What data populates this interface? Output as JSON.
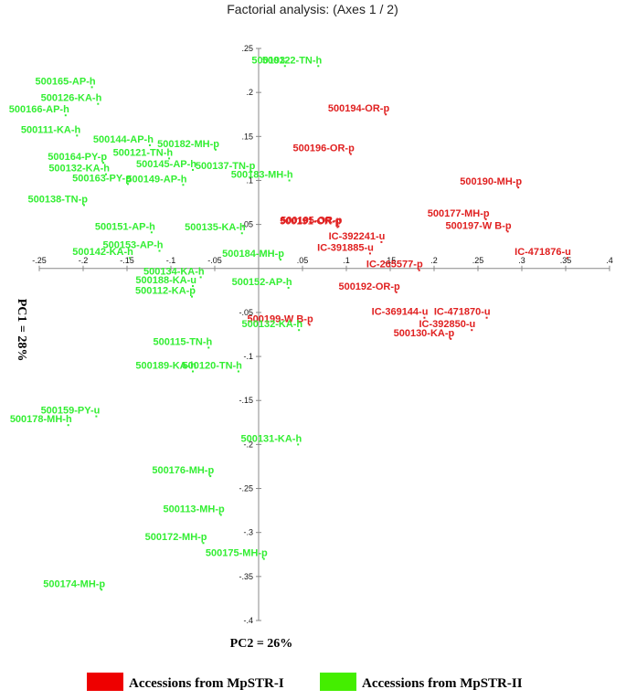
{
  "chart_data": {
    "type": "scatter",
    "title": "Factorial analysis: (Axes 1 / 2)",
    "xlabel": "PC2 = 26%",
    "ylabel": "PC1 = 28%",
    "xlim": [
      -0.25,
      0.4
    ],
    "ylim": [
      -0.4,
      0.25
    ],
    "x_ticks": [
      {
        "value": -0.25,
        "label": "-.25"
      },
      {
        "value": -0.2,
        "label": "-.2"
      },
      {
        "value": -0.15,
        "label": "-.15"
      },
      {
        "value": -0.1,
        "label": "-.1"
      },
      {
        "value": -0.05,
        "label": "-.05"
      },
      {
        "value": 0.05,
        "label": ".05"
      },
      {
        "value": 0.1,
        "label": ".1"
      },
      {
        "value": 0.15,
        "label": ".15"
      },
      {
        "value": 0.2,
        "label": ".2"
      },
      {
        "value": 0.25,
        "label": ".25"
      },
      {
        "value": 0.3,
        "label": ".3"
      },
      {
        "value": 0.35,
        "label": ".35"
      },
      {
        "value": 0.4,
        "label": ".4"
      }
    ],
    "y_ticks": [
      {
        "value": 0.25,
        "label": ".25"
      },
      {
        "value": 0.2,
        "label": ".2"
      },
      {
        "value": 0.15,
        "label": ".15"
      },
      {
        "value": 0.1,
        "label": ".1"
      },
      {
        "value": 0.05,
        "label": ".05"
      },
      {
        "value": -0.05,
        "label": "-.05"
      },
      {
        "value": -0.1,
        "label": "-.1"
      },
      {
        "value": -0.15,
        "label": "-.15"
      },
      {
        "value": -0.2,
        "label": "-.2"
      },
      {
        "value": -0.25,
        "label": "-.25"
      },
      {
        "value": -0.3,
        "label": "-.3"
      },
      {
        "value": -0.35,
        "label": "-.35"
      },
      {
        "value": -0.4,
        "label": "-.4"
      }
    ],
    "grid": false,
    "legend_position": "bottom",
    "series": [
      {
        "name": "Accessions from MpSTR-I",
        "color": "#e02020",
        "points": [
          {
            "label": "500194-OR-p",
            "x": 0.145,
            "y": 0.175
          },
          {
            "label": "500196-OR-p",
            "x": 0.105,
            "y": 0.13
          },
          {
            "label": "500190-MH-p",
            "x": 0.296,
            "y": 0.092
          },
          {
            "label": "500177-MH-p",
            "x": 0.259,
            "y": 0.056
          },
          {
            "label": "500197-W B-p",
            "x": 0.284,
            "y": 0.042
          },
          {
            "label": "500195-OR-p",
            "x": 0.091,
            "y": 0.048
          },
          {
            "label": "500191-OR-p",
            "x": 0.09,
            "y": 0.047
          },
          {
            "label": "IC-392241-u",
            "x": 0.14,
            "y": 0.03
          },
          {
            "label": "IC-391885-u",
            "x": 0.127,
            "y": 0.017
          },
          {
            "label": "IC-471876-u",
            "x": 0.352,
            "y": 0.012
          },
          {
            "label": "IC-265577-p",
            "x": 0.183,
            "y": -0.002
          },
          {
            "label": "500192-OR-p",
            "x": 0.157,
            "y": -0.027
          },
          {
            "label": "IC-369144-u",
            "x": 0.189,
            "y": -0.056
          },
          {
            "label": "IC-471870-u",
            "x": 0.26,
            "y": -0.056
          },
          {
            "label": "IC-392850-u",
            "x": 0.243,
            "y": -0.07
          },
          {
            "label": "500130-KA-p",
            "x": 0.219,
            "y": -0.08
          },
          {
            "label": "500199-W B-p",
            "x": 0.058,
            "y": -0.064
          }
        ]
      },
      {
        "name": "Accessions from MpSTR-II",
        "color": "#33ee33",
        "points": [
          {
            "label": "500193-",
            "x": 0.03,
            "y": 0.23
          },
          {
            "label": "500122-TN-h",
            "x": 0.068,
            "y": 0.23
          },
          {
            "label": "500165-AP-h",
            "x": -0.19,
            "y": 0.206
          },
          {
            "label": "500126-KA-h",
            "x": -0.183,
            "y": 0.187
          },
          {
            "label": "500166-AP-h",
            "x": -0.22,
            "y": 0.174
          },
          {
            "label": "500111-KA-h",
            "x": -0.207,
            "y": 0.151
          },
          {
            "label": "500144-AP-h",
            "x": -0.124,
            "y": 0.14
          },
          {
            "label": "500182-MH-p",
            "x": -0.049,
            "y": 0.135
          },
          {
            "label": "500121-TN-h",
            "x": -0.102,
            "y": 0.125
          },
          {
            "label": "500164-PY-p",
            "x": -0.177,
            "y": 0.12
          },
          {
            "label": "500145-AP-h",
            "x": -0.075,
            "y": 0.112
          },
          {
            "label": "500137-TN-p",
            "x": -0.008,
            "y": 0.11
          },
          {
            "label": "500183-MH-h",
            "x": 0.035,
            "y": 0.1
          },
          {
            "label": "500132-KA-h",
            "x": -0.174,
            "y": 0.107
          },
          {
            "label": "500163-PY-p",
            "x": -0.149,
            "y": 0.096
          },
          {
            "label": "500149-AP-h",
            "x": -0.086,
            "y": 0.095
          },
          {
            "label": "500138-TN-p",
            "x": -0.199,
            "y": 0.072
          },
          {
            "label": "500151-AP-h",
            "x": -0.122,
            "y": 0.041
          },
          {
            "label": "500135-KA-h",
            "x": -0.019,
            "y": 0.04
          },
          {
            "label": "500142-KA-h",
            "x": -0.147,
            "y": 0.012
          },
          {
            "label": "500153-AP-h",
            "x": -0.113,
            "y": 0.02
          },
          {
            "label": "500184-MH-p",
            "x": 0.025,
            "y": 0.01
          },
          {
            "label": "500134-KA-h",
            "x": -0.066,
            "y": -0.01
          },
          {
            "label": "500188-KA-u",
            "x": -0.075,
            "y": -0.02
          },
          {
            "label": "500112-KA-p",
            "x": -0.076,
            "y": -0.032
          },
          {
            "label": "500152-AP-h",
            "x": 0.034,
            "y": -0.022
          },
          {
            "label": "500132-KA-h",
            "x": 0.046,
            "y": -0.07
          },
          {
            "label": "500115-TN-h",
            "x": -0.057,
            "y": -0.09
          },
          {
            "label": "500189-KA-h",
            "x": -0.075,
            "y": -0.117
          },
          {
            "label": "500120-TN-h",
            "x": -0.023,
            "y": -0.117
          },
          {
            "label": "500159-PY-u",
            "x": -0.185,
            "y": -0.168
          },
          {
            "label": "500178-MH-h",
            "x": -0.217,
            "y": -0.178
          },
          {
            "label": "500131-KA-h",
            "x": 0.045,
            "y": -0.2
          },
          {
            "label": "500176-MH-p",
            "x": -0.055,
            "y": -0.236
          },
          {
            "label": "500113-MH-p",
            "x": -0.043,
            "y": -0.28
          },
          {
            "label": "500172-MH-p",
            "x": -0.063,
            "y": -0.312
          },
          {
            "label": "500175-MH-p",
            "x": 0.006,
            "y": -0.33
          },
          {
            "label": "500174-MH-p",
            "x": -0.179,
            "y": -0.365
          }
        ]
      }
    ]
  }
}
